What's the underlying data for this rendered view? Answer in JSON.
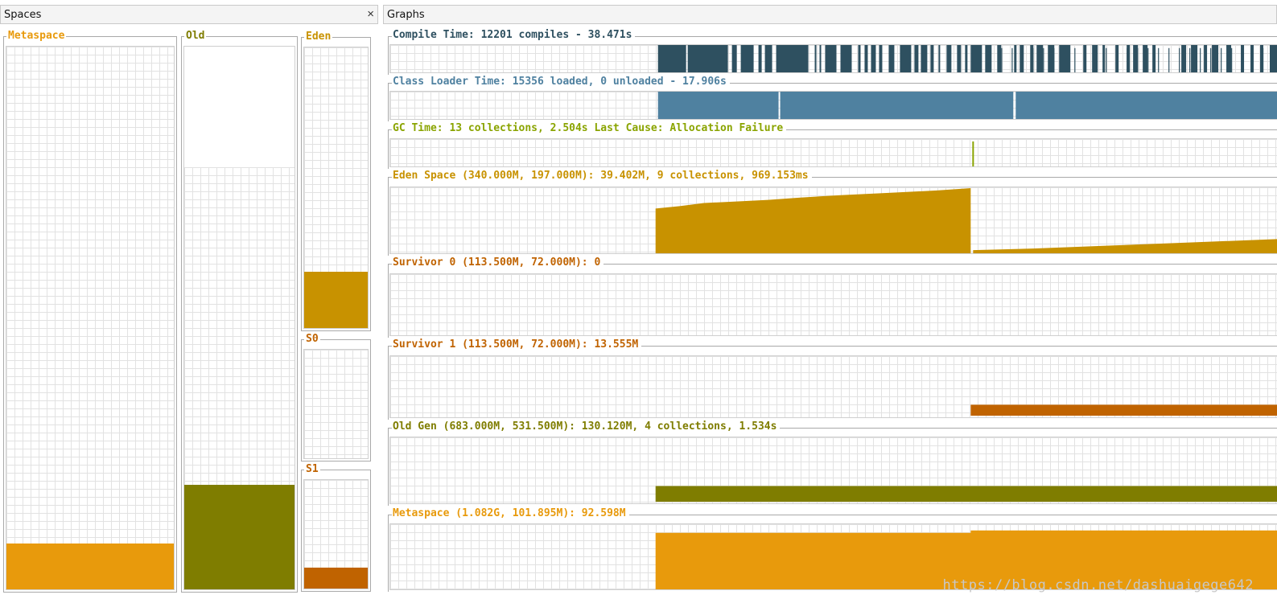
{
  "spaces_pane": {
    "title": "Spaces",
    "close_symbol": "×"
  },
  "graphs_pane": {
    "title": "Graphs"
  },
  "spaces": {
    "metaspace": {
      "label": "Metaspace",
      "color": "#e89a0c",
      "used_fraction": 0.085,
      "committed_fraction": 0.095
    },
    "old": {
      "label": "Old",
      "color": "#7f7d00",
      "used_fraction": 0.193,
      "committed_fraction": 0.778
    },
    "eden": {
      "label": "Eden",
      "color": "#c89200",
      "used_fraction": 0.2,
      "committed_fraction": 1.0
    },
    "s0": {
      "label": "S0",
      "color": "#c06300",
      "used_fraction": 0.0,
      "committed_fraction": 1.0
    },
    "s1": {
      "label": "S1",
      "color": "#c06300",
      "used_fraction": 0.19,
      "committed_fraction": 1.0
    }
  },
  "graphs": {
    "compile": {
      "title": "Compile Time: 12201 compiles - 38.471s",
      "color": "#2e5060"
    },
    "classloader": {
      "title": "Class Loader Time: 15356 loaded, 0 unloaded - 17.906s",
      "color": "#4f81a0"
    },
    "gc": {
      "title": "GC Time: 13 collections, 2.504s  Last Cause: Allocation Failure",
      "color": "#8aa400"
    },
    "eden": {
      "title": "Eden Space (340.000M, 197.000M): 39.402M, 9 collections, 969.153ms",
      "color": "#c89200"
    },
    "survivor0": {
      "title": "Survivor 0 (113.500M, 72.000M): 0",
      "color": "#c06300"
    },
    "survivor1": {
      "title": "Survivor 1 (113.500M, 72.000M): 13.555M",
      "color": "#c06300"
    },
    "oldgen": {
      "title": "Old Gen (683.000M, 531.500M): 130.120M, 4 collections, 1.534s",
      "color": "#7f7d00"
    },
    "metaspace": {
      "title": "Metaspace (1.082G, 101.895M): 92.598M",
      "color": "#e89a0c"
    }
  },
  "watermark": "https://blog.csdn.net/dashuaigege642"
}
